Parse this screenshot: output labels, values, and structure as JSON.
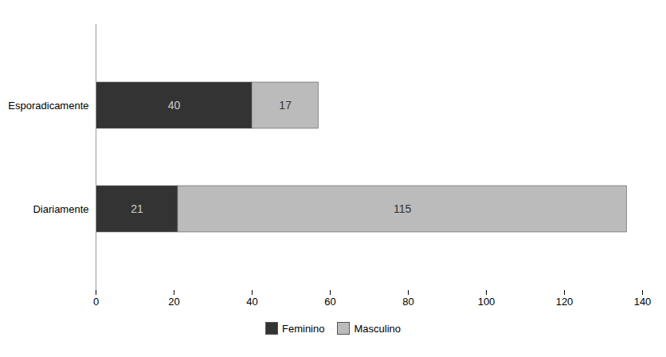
{
  "chart_data": {
    "type": "bar",
    "orientation": "horizontal",
    "stacked": true,
    "data_labels": true,
    "categories": [
      "Diariamente",
      "Esporadicamente"
    ],
    "series": [
      {
        "name": "Feminino",
        "color": "#333333",
        "values": [
          21,
          40
        ]
      },
      {
        "name": "Masculino",
        "color": "#bbbbbb",
        "values": [
          115,
          17
        ]
      }
    ],
    "xlim": [
      0,
      140
    ],
    "xticks": [
      0,
      20,
      40,
      60,
      80,
      100,
      120,
      140
    ],
    "grid": false,
    "legend": "bottom"
  }
}
